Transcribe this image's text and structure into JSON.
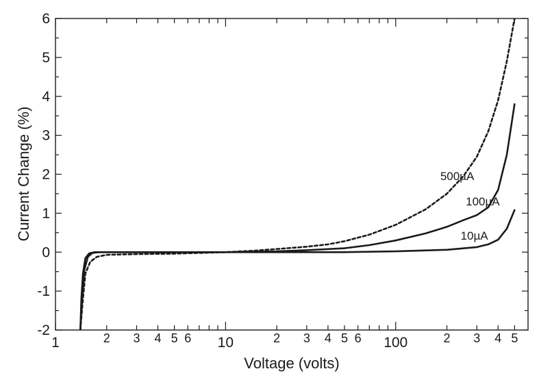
{
  "chart_data": {
    "type": "line",
    "title": "",
    "xlabel": "Voltage (volts)",
    "ylabel": "Current Change (%)",
    "x_scale": "log",
    "xlim": [
      1,
      600
    ],
    "ylim": [
      -2,
      6
    ],
    "grid": false,
    "x_major_ticks": [
      {
        "value": 1,
        "label": "1"
      },
      {
        "value": 10,
        "label": "10"
      },
      {
        "value": 100,
        "label": "100"
      }
    ],
    "x_minor_ticks": [
      {
        "value": 2,
        "label": "2"
      },
      {
        "value": 3,
        "label": "3"
      },
      {
        "value": 4,
        "label": "4"
      },
      {
        "value": 5,
        "label": "5"
      },
      {
        "value": 6,
        "label": "6"
      },
      {
        "value": 7,
        "label": ""
      },
      {
        "value": 8,
        "label": ""
      },
      {
        "value": 9,
        "label": ""
      },
      {
        "value": 20,
        "label": "2"
      },
      {
        "value": 30,
        "label": "3"
      },
      {
        "value": 40,
        "label": "4"
      },
      {
        "value": 50,
        "label": "5"
      },
      {
        "value": 60,
        "label": "6"
      },
      {
        "value": 70,
        "label": ""
      },
      {
        "value": 80,
        "label": ""
      },
      {
        "value": 90,
        "label": ""
      },
      {
        "value": 200,
        "label": "2"
      },
      {
        "value": 300,
        "label": "3"
      },
      {
        "value": 400,
        "label": "4"
      },
      {
        "value": 500,
        "label": "5"
      }
    ],
    "y_ticks": [
      {
        "value": -2,
        "label": "-2"
      },
      {
        "value": -1,
        "label": "-1"
      },
      {
        "value": 0,
        "label": "0"
      },
      {
        "value": 1,
        "label": "1"
      },
      {
        "value": 2,
        "label": "2"
      },
      {
        "value": 3,
        "label": "3"
      },
      {
        "value": 4,
        "label": "4"
      },
      {
        "value": 5,
        "label": "5"
      },
      {
        "value": 6,
        "label": "6"
      }
    ],
    "series": [
      {
        "name": "500µA",
        "style": "dashed",
        "label_at": [
          230,
          1.85
        ],
        "points": [
          [
            1.4,
            -2.0
          ],
          [
            1.45,
            -1.2
          ],
          [
            1.5,
            -0.55
          ],
          [
            1.6,
            -0.25
          ],
          [
            1.75,
            -0.12
          ],
          [
            2.0,
            -0.07
          ],
          [
            3,
            -0.05
          ],
          [
            5,
            -0.04
          ],
          [
            10,
            0.0
          ],
          [
            15,
            0.04
          ],
          [
            20,
            0.08
          ],
          [
            30,
            0.14
          ],
          [
            40,
            0.2
          ],
          [
            50,
            0.28
          ],
          [
            70,
            0.45
          ],
          [
            100,
            0.7
          ],
          [
            150,
            1.1
          ],
          [
            200,
            1.5
          ],
          [
            250,
            1.95
          ],
          [
            300,
            2.45
          ],
          [
            350,
            3.1
          ],
          [
            400,
            3.9
          ],
          [
            450,
            4.9
          ],
          [
            500,
            6.0
          ]
        ]
      },
      {
        "name": "100µA",
        "style": "solid",
        "label_at": [
          325,
          1.2
        ],
        "points": [
          [
            1.4,
            -2.0
          ],
          [
            1.43,
            -1.2
          ],
          [
            1.48,
            -0.45
          ],
          [
            1.55,
            -0.12
          ],
          [
            1.65,
            -0.02
          ],
          [
            1.8,
            0.0
          ],
          [
            3,
            0.0
          ],
          [
            10,
            0.0
          ],
          [
            20,
            0.02
          ],
          [
            30,
            0.05
          ],
          [
            50,
            0.1
          ],
          [
            70,
            0.18
          ],
          [
            100,
            0.3
          ],
          [
            150,
            0.48
          ],
          [
            200,
            0.65
          ],
          [
            250,
            0.82
          ],
          [
            300,
            0.95
          ],
          [
            350,
            1.15
          ],
          [
            400,
            1.6
          ],
          [
            450,
            2.5
          ],
          [
            500,
            3.8
          ]
        ]
      },
      {
        "name": "10µA",
        "style": "solid",
        "label_at": [
          290,
          0.32
        ],
        "points": [
          [
            1.4,
            -2.0
          ],
          [
            1.42,
            -1.2
          ],
          [
            1.45,
            -0.55
          ],
          [
            1.5,
            -0.15
          ],
          [
            1.58,
            -0.03
          ],
          [
            1.7,
            0.0
          ],
          [
            3,
            0.0
          ],
          [
            10,
            0.0
          ],
          [
            30,
            0.0
          ],
          [
            50,
            0.0
          ],
          [
            100,
            0.02
          ],
          [
            200,
            0.06
          ],
          [
            300,
            0.13
          ],
          [
            350,
            0.2
          ],
          [
            400,
            0.32
          ],
          [
            450,
            0.6
          ],
          [
            500,
            1.08
          ]
        ]
      }
    ]
  }
}
